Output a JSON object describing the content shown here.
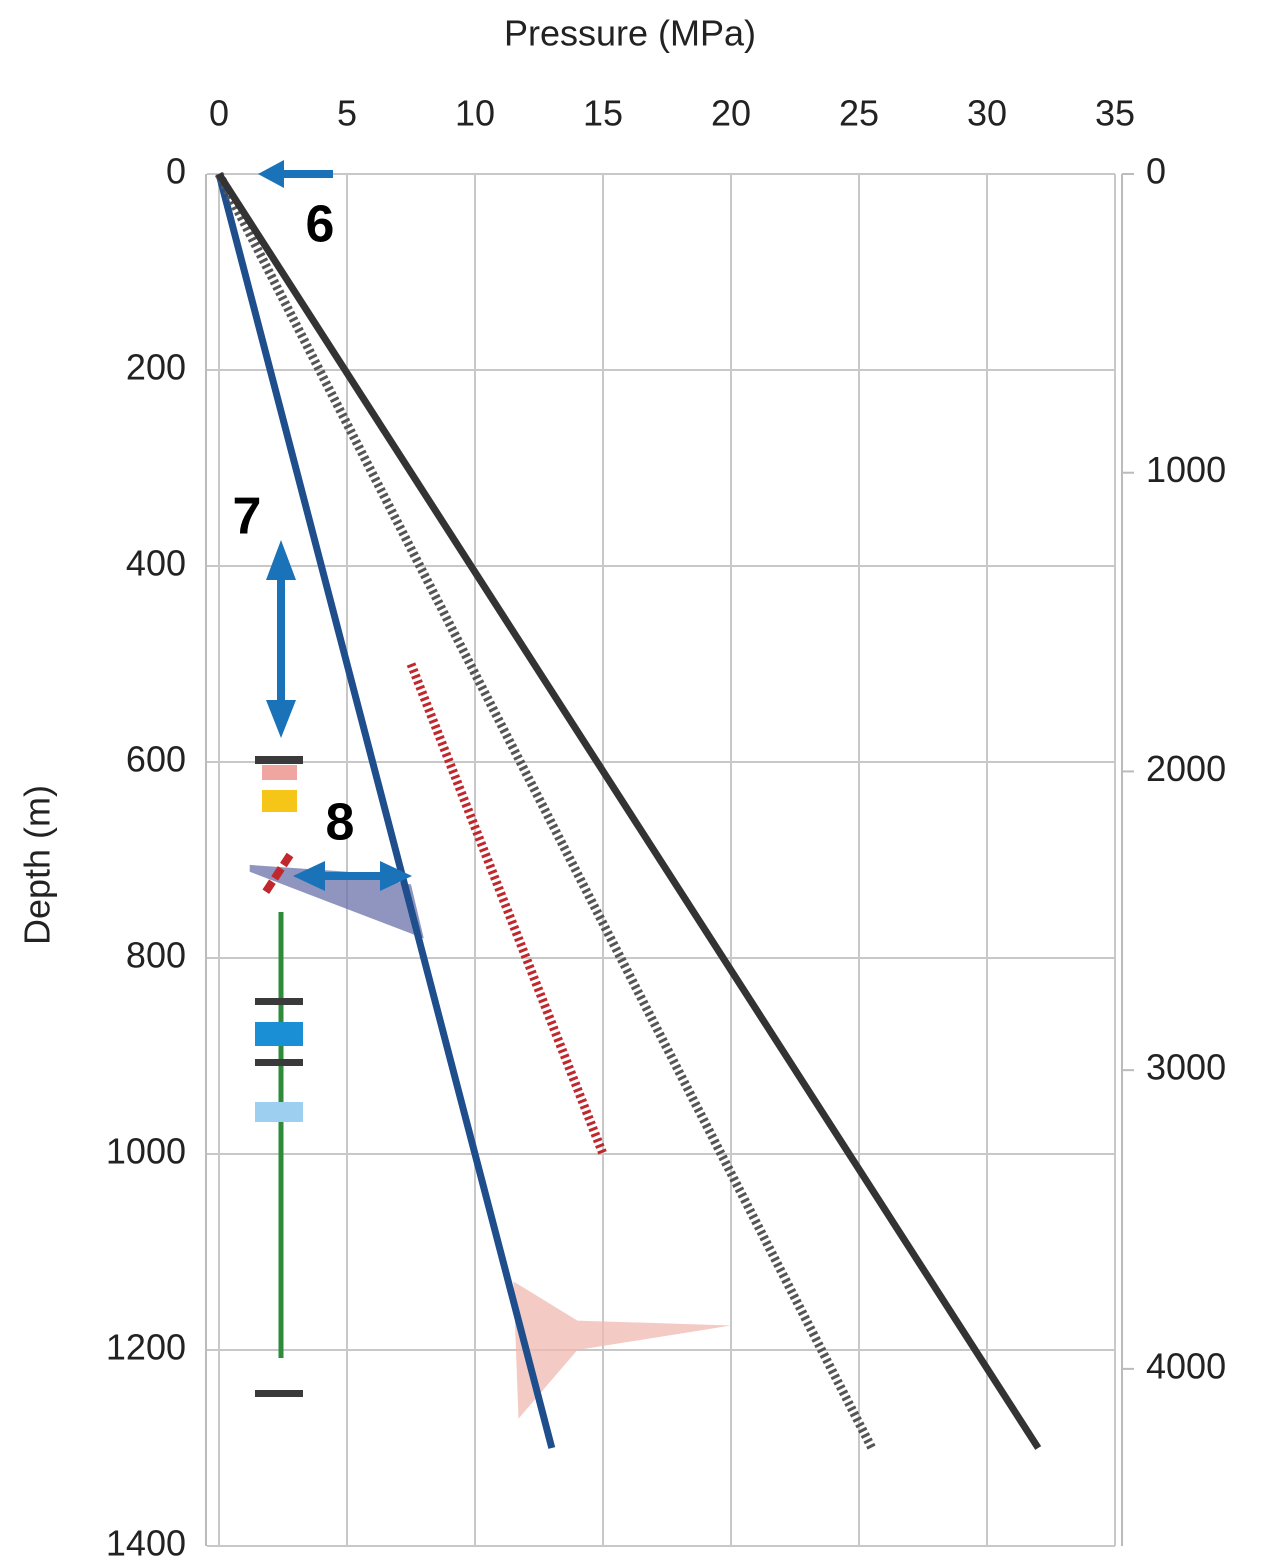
{
  "chart_data": {
    "type": "line",
    "x_label": "Pressure (MPa)",
    "y_label": "Depth (m)",
    "xlim": [
      0,
      35
    ],
    "xticks": [
      0,
      5,
      10,
      15,
      20,
      25,
      30,
      35
    ],
    "ylim": [
      0,
      1400
    ],
    "yticks": [
      0,
      200,
      400,
      600,
      800,
      1000,
      1200,
      1400
    ],
    "y_reversed": true,
    "y2lim": [
      0,
      4593
    ],
    "y2ticks": [
      0,
      1000,
      2000,
      3000,
      4000
    ],
    "grid": true,
    "series": [
      {
        "color": "#6a72a8",
        "style": "area",
        "x": [
          1.2,
          5,
          7.5,
          8,
          4.5,
          1.2
        ],
        "y": [
          705,
          712,
          725,
          780,
          745,
          712
        ]
      },
      {
        "color": "#f0b8b0",
        "style": "area",
        "x": [
          11.5,
          14,
          20,
          14,
          11.7
        ],
        "y": [
          1130,
          1170,
          1175,
          1200,
          1270
        ]
      },
      {
        "color": "#1f4e8c",
        "style": "solid",
        "x": [
          0,
          13
        ],
        "y": [
          0,
          1300
        ]
      },
      {
        "color": "#555555",
        "style": "dotted",
        "x": [
          0,
          25.5
        ],
        "y": [
          0,
          1300
        ]
      },
      {
        "color": "#333333",
        "style": "solid",
        "x": [
          0,
          32
        ],
        "y": [
          0,
          1300
        ]
      },
      {
        "color": "#c0282d",
        "style": "dotted",
        "x": [
          7.5,
          15
        ],
        "y": [
          500,
          1000
        ]
      }
    ],
    "annotations": [
      "6",
      "7",
      "8"
    ]
  }
}
